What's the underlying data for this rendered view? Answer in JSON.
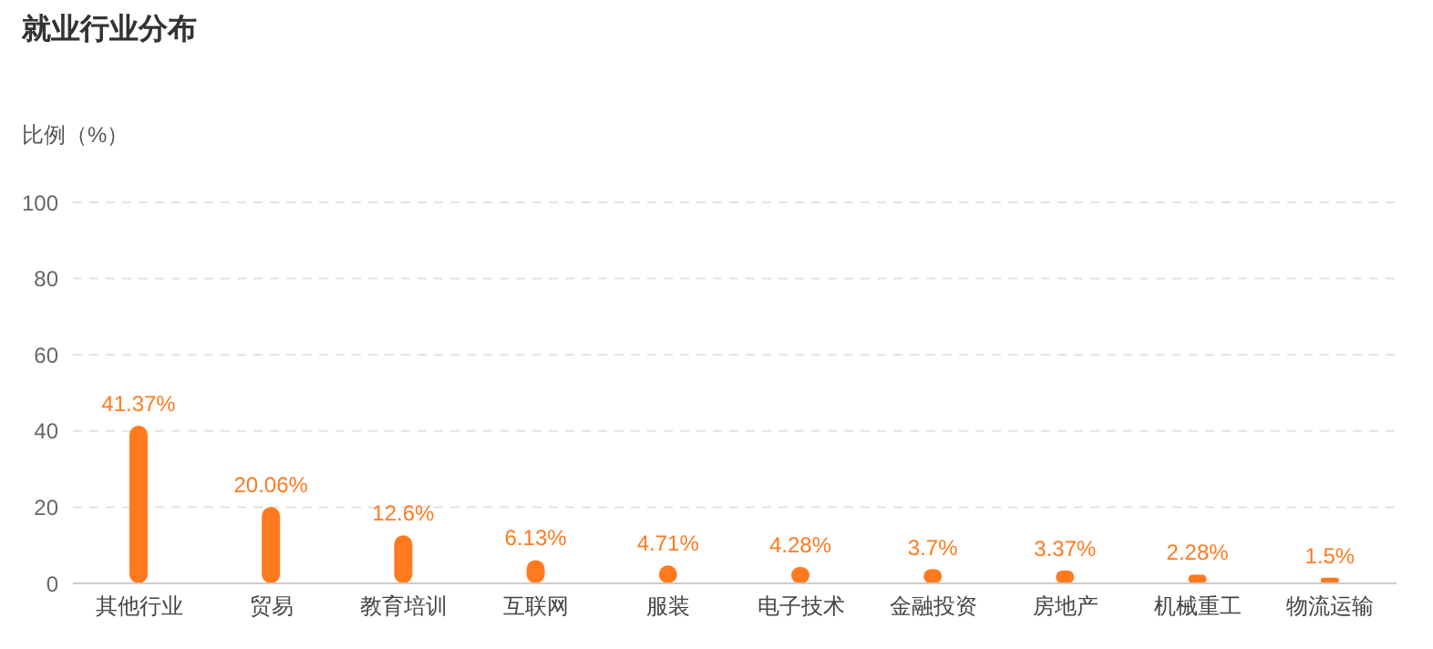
{
  "chart_data": {
    "type": "bar",
    "title": "就业行业分布",
    "ylabel": "比例（%）",
    "categories": [
      "其他行业",
      "贸易",
      "教育培训",
      "互联网",
      "服装",
      "电子技术",
      "金融投资",
      "房地产",
      "机械重工",
      "物流运输"
    ],
    "values": [
      41.37,
      20.06,
      12.6,
      6.13,
      4.71,
      4.28,
      3.7,
      3.37,
      2.28,
      1.5
    ],
    "value_labels": [
      "41.37%",
      "20.06%",
      "12.6%",
      "6.13%",
      "4.71%",
      "4.28%",
      "3.7%",
      "3.37%",
      "2.28%",
      "1.5%"
    ],
    "color": "#ff7a1f",
    "ylim": [
      0,
      100
    ],
    "yticks": [
      0,
      20,
      40,
      60,
      80,
      100
    ],
    "grid": "y",
    "legend": false
  }
}
